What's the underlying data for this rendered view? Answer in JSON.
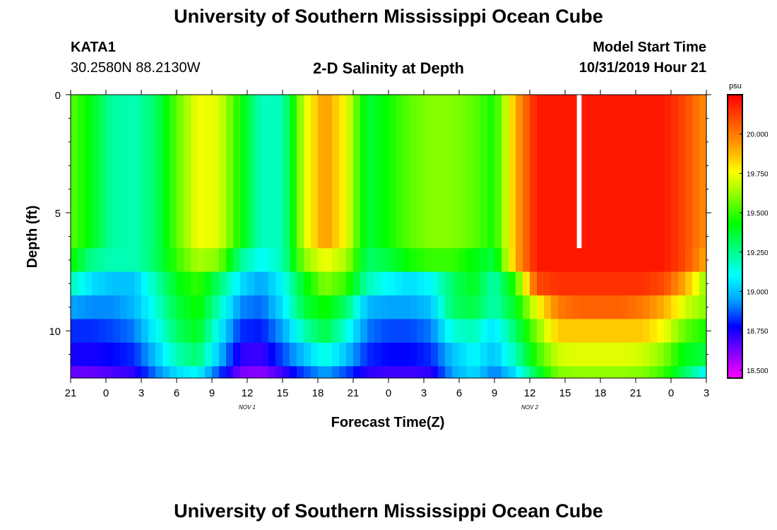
{
  "header": {
    "title": "University of Southern Mississippi Ocean Cube",
    "station": "KATA1",
    "coordinates": "30.2580N 88.2130W",
    "plot_title": "2-D Salinity at Depth",
    "model_label": "Model Start Time",
    "model_time": "10/31/2019 Hour 21"
  },
  "footer": {
    "title": "University of Southern Mississippi Ocean Cube"
  },
  "chart_data": {
    "type": "heatmap",
    "title": "2-D Salinity at Depth",
    "xlabel": "Forecast Time(Z)",
    "ylabel": "Depth (ft)",
    "x_hours": [
      0,
      3,
      6,
      9,
      12,
      15,
      18,
      21,
      24,
      27,
      30,
      33,
      36,
      39,
      42,
      45,
      48,
      51,
      54
    ],
    "x_tick_labels": [
      "21",
      "0",
      "3",
      "6",
      "9",
      "12",
      "15",
      "18",
      "21",
      "0",
      "3",
      "6",
      "9",
      "12",
      "15",
      "18",
      "21",
      "0",
      "3"
    ],
    "date_labels": [
      {
        "hour": 15,
        "text": "NOV 1"
      },
      {
        "hour": 39,
        "text": "NOV 2"
      }
    ],
    "xlim": [
      0,
      54
    ],
    "y_ticks": [
      0,
      5,
      10
    ],
    "y_tick_labels": [
      "0",
      "5",
      "10"
    ],
    "ylim": [
      0,
      12
    ],
    "layers": [
      {
        "top": 0,
        "bottom": 6.5
      },
      {
        "top": 6.5,
        "bottom": 7.5
      },
      {
        "top": 7.5,
        "bottom": 8.5
      },
      {
        "top": 8.5,
        "bottom": 9.5
      },
      {
        "top": 9.5,
        "bottom": 10.5
      },
      {
        "top": 10.5,
        "bottom": 11.5
      },
      {
        "top": 11.5,
        "bottom": 12
      }
    ],
    "salinity": [
      [
        19.55,
        19.4,
        19.22,
        19.2,
        19.3,
        19.55,
        19.75,
        19.72,
        19.45,
        19.18,
        19.2,
        19.7,
        19.95,
        19.75,
        19.35,
        19.45,
        19.55,
        19.6,
        19.6,
        19.55,
        19.45,
        19.9,
        20.2,
        20.2,
        20.2,
        20.2,
        20.2,
        20.2,
        20.2,
        20.1,
        19.95
      ],
      [
        19.45,
        19.25,
        19.2,
        19.2,
        19.3,
        19.5,
        19.65,
        19.6,
        19.25,
        19.1,
        19.2,
        19.6,
        19.75,
        19.65,
        19.3,
        19.35,
        19.45,
        19.5,
        19.5,
        19.42,
        19.35,
        19.9,
        20.2,
        20.2,
        20.2,
        20.2,
        20.2,
        20.2,
        20.2,
        20.1,
        19.9
      ],
      [
        19.2,
        19.05,
        19.0,
        19.0,
        19.2,
        19.4,
        19.5,
        19.3,
        19.05,
        18.95,
        19.1,
        19.4,
        19.6,
        19.5,
        19.2,
        19.1,
        19.05,
        19.1,
        19.3,
        19.4,
        19.2,
        19.5,
        20.1,
        20.15,
        20.15,
        20.15,
        20.15,
        20.15,
        20.1,
        19.9,
        19.6
      ],
      [
        18.95,
        18.92,
        18.92,
        18.98,
        19.15,
        19.35,
        19.45,
        19.2,
        18.92,
        18.88,
        19.05,
        19.35,
        19.45,
        19.3,
        18.98,
        18.95,
        18.95,
        19.0,
        19.3,
        19.35,
        19.2,
        19.4,
        19.75,
        20.0,
        20.05,
        20.05,
        20.05,
        20.0,
        19.9,
        19.7,
        19.6
      ],
      [
        18.82,
        18.82,
        18.85,
        18.9,
        19.1,
        19.3,
        19.4,
        19.1,
        18.82,
        18.8,
        18.95,
        19.2,
        19.35,
        19.15,
        18.9,
        18.85,
        18.85,
        18.9,
        19.15,
        19.2,
        19.05,
        19.3,
        19.6,
        19.85,
        19.85,
        19.85,
        19.85,
        19.85,
        19.75,
        19.55,
        19.45
      ],
      [
        18.75,
        18.75,
        18.78,
        18.82,
        19.0,
        19.2,
        19.3,
        19.0,
        18.72,
        18.7,
        18.85,
        19.0,
        19.15,
        19.0,
        18.82,
        18.78,
        18.78,
        18.82,
        19.0,
        19.1,
        19.0,
        19.2,
        19.5,
        19.7,
        19.72,
        19.72,
        19.72,
        19.7,
        19.6,
        19.4,
        19.35
      ],
      [
        18.65,
        18.65,
        18.68,
        18.72,
        18.9,
        19.05,
        19.1,
        18.85,
        18.62,
        18.6,
        18.7,
        18.85,
        18.95,
        18.85,
        18.72,
        18.7,
        18.7,
        18.72,
        18.95,
        19.05,
        18.9,
        19.05,
        19.35,
        19.6,
        19.62,
        19.62,
        19.62,
        19.6,
        19.5,
        19.3,
        19.1
      ]
    ],
    "unit": "psu",
    "colorbar_ticks": [
      20.0,
      19.75,
      19.5,
      19.25,
      19.0,
      18.75,
      18.5
    ],
    "colorbar_tick_labels": [
      "20.000",
      "19.750",
      "19.500",
      "19.250",
      "19.000",
      "18.750",
      "18.500"
    ],
    "colorbar_range": [
      18.45,
      20.25
    ],
    "colormap": [
      "#ff00ff",
      "#8000ff",
      "#0000ff",
      "#00a0ff",
      "#00ffff",
      "#00ff80",
      "#00ff00",
      "#80ff00",
      "#ffff00",
      "#ffa000",
      "#ff5000",
      "#ff0000"
    ],
    "gap_marker": {
      "hour_start": 43,
      "hour_end": 43.4,
      "depth_bottom": 6.5,
      "color": "#ffffff"
    }
  }
}
